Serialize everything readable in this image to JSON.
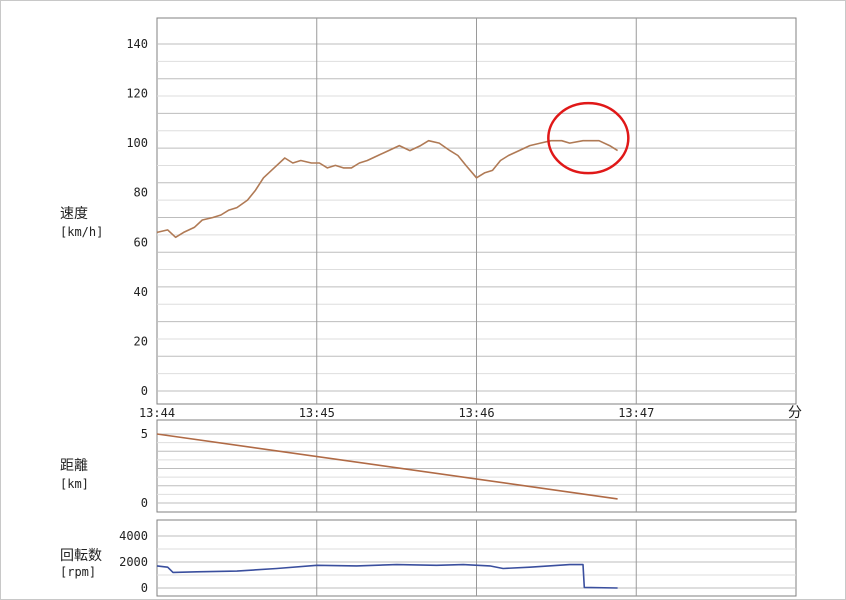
{
  "chart_data": [
    {
      "type": "line",
      "ylabel_lines": [
        "速度",
        "[km/h]"
      ],
      "x_ticks": [
        "13:44",
        "13:45",
        "13:46",
        "13:47"
      ],
      "x_unit": "分",
      "xlim": [
        "13:44:00",
        "13:48:00"
      ],
      "ylim": [
        0,
        140
      ],
      "y_ticks": [
        "0",
        "20",
        "40",
        "60",
        "80",
        "100",
        "120",
        "140"
      ],
      "grid": true,
      "series": [
        {
          "color": "#b07a55",
          "x": [
            "13:44:00",
            "13:44:04",
            "13:44:07",
            "13:44:10",
            "13:44:14",
            "13:44:17",
            "13:44:21",
            "13:44:24",
            "13:44:27",
            "13:44:30",
            "13:44:34",
            "13:44:37",
            "13:44:40",
            "13:44:44",
            "13:44:48",
            "13:44:51",
            "13:44:54",
            "13:44:58",
            "13:45:01",
            "13:45:04",
            "13:45:07",
            "13:45:10",
            "13:45:13",
            "13:45:16",
            "13:45:19",
            "13:45:23",
            "13:45:27",
            "13:45:31",
            "13:45:35",
            "13:45:39",
            "13:45:42",
            "13:45:46",
            "13:45:50",
            "13:45:53",
            "13:45:56",
            "13:46:00",
            "13:46:03",
            "13:46:06",
            "13:46:09",
            "13:46:12",
            "13:46:16",
            "13:46:20",
            "13:46:24",
            "13:46:28",
            "13:46:32",
            "13:46:35",
            "13:46:40",
            "13:46:46",
            "13:46:50",
            "13:46:53"
          ],
          "y": [
            64,
            65,
            62,
            64,
            66,
            69,
            70,
            71,
            73,
            74,
            77,
            81,
            86,
            90,
            94,
            92,
            93,
            92,
            92,
            90,
            91,
            90,
            90,
            92,
            93,
            95,
            97,
            99,
            97,
            99,
            101,
            100,
            97,
            95,
            91,
            86,
            88,
            89,
            93,
            95,
            97,
            99,
            100,
            101,
            101,
            100,
            101,
            101,
            99,
            97
          ]
        }
      ]
    },
    {
      "type": "line",
      "ylabel_lines": [
        "距離",
        "[km]"
      ],
      "ylim": [
        0,
        5
      ],
      "y_ticks": [
        "0",
        "5"
      ],
      "grid": true,
      "series": [
        {
          "color": "#b06a45",
          "x": [
            "13:44:00",
            "13:46:53"
          ],
          "y": [
            5.0,
            0.3
          ]
        }
      ]
    },
    {
      "type": "line",
      "ylabel_lines": [
        "回転数",
        "[rpm]"
      ],
      "ylim": [
        0,
        4000
      ],
      "y_ticks": [
        "0",
        "2000",
        "4000"
      ],
      "grid": true,
      "series": [
        {
          "color": "#3a4f9e",
          "x": [
            "13:44:00",
            "13:44:04",
            "13:44:06",
            "13:44:15",
            "13:44:30",
            "13:44:45",
            "13:45:00",
            "13:45:15",
            "13:45:30",
            "13:45:45",
            "13:45:55",
            "13:46:05",
            "13:46:10",
            "13:46:20",
            "13:46:35",
            "13:46:40",
            "13:46:40.5",
            "13:46:53"
          ],
          "y": [
            1700,
            1600,
            1200,
            1250,
            1300,
            1500,
            1750,
            1700,
            1800,
            1750,
            1800,
            1700,
            1500,
            1600,
            1800,
            1800,
            50,
            0
          ]
        }
      ]
    }
  ],
  "highlight": {
    "x": "13:46:42",
    "y": 102,
    "color": "#e01818"
  }
}
